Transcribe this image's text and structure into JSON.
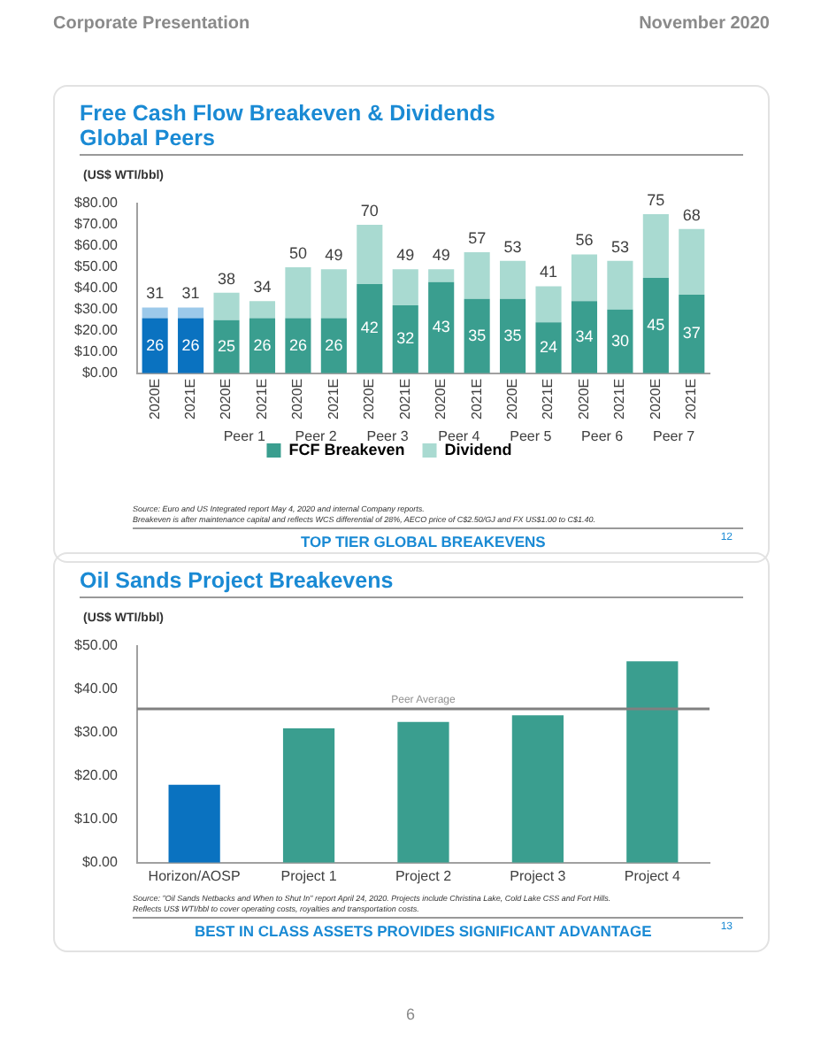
{
  "chart_data": [
    {
      "type": "bar",
      "title": "Free Cash Flow Breakeven & Dividends",
      "subtitle": "Global Peers",
      "ylabel": "(US$ WTI/bbl)",
      "categories": [
        "2020E",
        "2021E",
        "2020E",
        "2021E",
        "2020E",
        "2021E",
        "2020E",
        "2021E",
        "2020E",
        "2021E",
        "2020E",
        "2021E",
        "2020E",
        "2021E",
        "2020E",
        "2021E"
      ],
      "stacked": true,
      "series": [
        {
          "name": "FCF Breakeven",
          "color": "#3a9e8f",
          "colors": [
            "#0a72c0",
            "#0a72c0",
            "#3a9e8f",
            "#3a9e8f",
            "#3a9e8f",
            "#3a9e8f",
            "#3a9e8f",
            "#3a9e8f",
            "#3a9e8f",
            "#3a9e8f",
            "#3a9e8f",
            "#3a9e8f",
            "#3a9e8f",
            "#3a9e8f",
            "#3a9e8f",
            "#3a9e8f"
          ],
          "values": [
            26,
            26,
            25,
            26,
            26,
            26,
            42,
            32,
            43,
            35,
            35,
            24,
            34,
            30,
            45,
            37
          ],
          "value_labels": [
            "26",
            "26",
            "25",
            "26",
            "26",
            "26",
            "42",
            "32",
            "43",
            "35",
            "35",
            "24",
            "34",
            "30",
            "45",
            "37"
          ]
        },
        {
          "name": "Dividend",
          "color": "#a9dad1",
          "colors": [
            "#9cc9ea",
            "#9cc9ea",
            "#a9dad1",
            "#a9dad1",
            "#a9dad1",
            "#a9dad1",
            "#a9dad1",
            "#a9dad1",
            "#a9dad1",
            "#a9dad1",
            "#a9dad1",
            "#a9dad1",
            "#a9dad1",
            "#a9dad1",
            "#a9dad1",
            "#a9dad1"
          ],
          "values": [
            5,
            5,
            13,
            8,
            24,
            23,
            28,
            17,
            6,
            22,
            18,
            17,
            22,
            23,
            30,
            31
          ]
        }
      ],
      "totals": [
        "31",
        "31",
        "38",
        "34",
        "50",
        "49",
        "70",
        "49",
        "49",
        "57",
        "53",
        "41",
        "56",
        "53",
        "75",
        "68"
      ],
      "ylim": [
        0,
        80
      ],
      "yticks": [
        {
          "value": 0,
          "label": "$0.00"
        },
        {
          "value": 10,
          "label": "$10.00"
        },
        {
          "value": 20,
          "label": "$20.00"
        },
        {
          "value": 30,
          "label": "$30.00"
        },
        {
          "value": 40,
          "label": "$40.00"
        },
        {
          "value": 50,
          "label": "$50.00"
        },
        {
          "value": 60,
          "label": "$60.00"
        },
        {
          "value": 70,
          "label": "$70.00"
        },
        {
          "value": 80,
          "label": "$80.00"
        }
      ],
      "legend": "bottom",
      "annotations": [
        "Corporate Presentation",
        "November 2020",
        "Source: Euro and US Integrated report May 4, 2020 and internal Company reports.",
        "Breakeven is after maintenance capital and reflects WCS differential of 28%, AECO price of C$2.50/GJ and FX US$1.00 to C$1.40.",
        "TOP TIER GLOBAL BREAKEVENS",
        "12",
        {
          "text": "Peer 1"
        },
        {
          "text": "Peer 2"
        },
        {
          "text": "Peer 3"
        },
        {
          "text": "Peer 4"
        },
        {
          "text": "Peer 5"
        },
        {
          "text": "Peer 6"
        },
        {
          "text": "Peer 7"
        }
      ]
    },
    {
      "type": "bar",
      "title": "Oil Sands Project Breakevens",
      "ylabel": "(US$ WTI/bbl)",
      "categories": [
        "Horizon/AOSP",
        "Project 1",
        "Project 2",
        "Project 3",
        "Project 4"
      ],
      "series": [
        {
          "color": "#3a9e8f",
          "colors": [
            "#0a72c0",
            "#3a9e8f",
            "#3a9e8f",
            "#3a9e8f",
            "#3a9e8f"
          ],
          "values": [
            18,
            31,
            32.5,
            34,
            46.5
          ]
        }
      ],
      "ylim": [
        0,
        50
      ],
      "yticks": [
        {
          "value": 0,
          "label": "$0.00"
        },
        {
          "value": 10,
          "label": "$10.00"
        },
        {
          "value": 20,
          "label": "$20.00"
        },
        {
          "value": 30,
          "label": "$30.00"
        },
        {
          "value": 40,
          "label": "$40.00"
        },
        {
          "value": 50,
          "label": "$50.00"
        }
      ],
      "ref_lines": [
        {
          "axis": "y",
          "value": 35.5,
          "label": "Peer Average",
          "color": "#808080"
        }
      ],
      "annotations": [
        "Source: \"Oil Sands Netbacks and When to Shut In\" report April 24, 2020. Projects include Christina Lake, Cold Lake CSS and Fort Hills.",
        "Reflects US$ WTI/bbl to cover operating costs, royalties and transportation costs.",
        "BEST IN CLASS ASSETS PROVIDES SIGNIFICANT ADVANTAGE",
        "13",
        "6"
      ]
    }
  ]
}
